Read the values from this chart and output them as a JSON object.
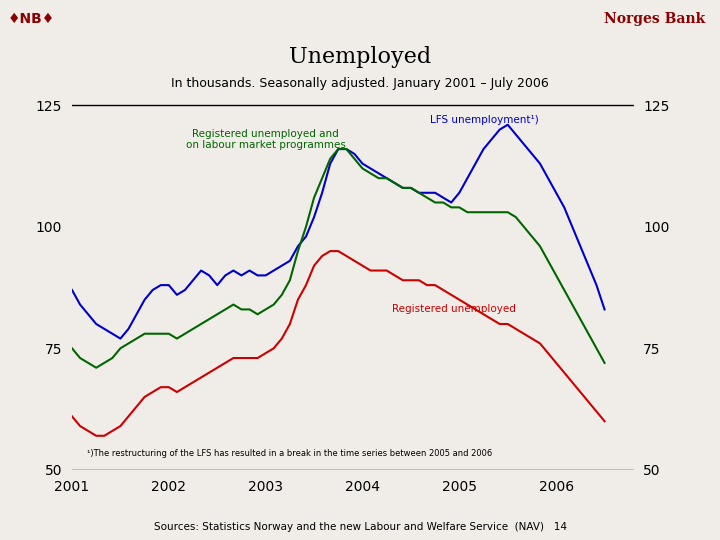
{
  "title": "Unemployed",
  "subtitle": "In thousands. Seasonally adjusted. January 2001 – July 2006",
  "footnote": "¹)The restructuring of the LFS has resulted in a break in the time series between 2005 and 2006",
  "source": "Sources: Statistics Norway and the new Labour and Welfare Service  (NAV)   14",
  "norges_bank_text": "Norges Bank",
  "nb_logo": "♦NB♦",
  "ylim": [
    50,
    130
  ],
  "yticks": [
    50,
    75,
    100,
    125
  ],
  "xlabel_years": [
    2001,
    2002,
    2003,
    2004,
    2005,
    2006
  ],
  "n_months": 67,
  "blue_color": "#0000CC",
  "green_color": "#006600",
  "red_color": "#CC0000",
  "bg_color": "#F0EDE8",
  "dark_red": "#8B0000",
  "lfs_label": "LFS unemployment¹)",
  "reg_and_prog_label": "Registered unemployed and\non labour market programmes",
  "reg_label": "Registered unemployed",
  "lfs": [
    87,
    84,
    82,
    80,
    79,
    78,
    77,
    79,
    82,
    85,
    87,
    88,
    88,
    86,
    87,
    89,
    91,
    90,
    88,
    90,
    91,
    90,
    91,
    90,
    90,
    91,
    92,
    93,
    96,
    98,
    102,
    107,
    113,
    116,
    116,
    115,
    113,
    112,
    111,
    110,
    109,
    108,
    108,
    107,
    107,
    107,
    106,
    105,
    107,
    110,
    113,
    116,
    118,
    120,
    121,
    119,
    117,
    115,
    113,
    110,
    107,
    104,
    100,
    96,
    92,
    88,
    83
  ],
  "reg_prog": [
    75,
    73,
    72,
    71,
    72,
    73,
    75,
    76,
    77,
    78,
    78,
    78,
    78,
    77,
    78,
    79,
    80,
    81,
    82,
    83,
    84,
    83,
    83,
    82,
    83,
    84,
    86,
    89,
    95,
    100,
    106,
    110,
    114,
    116,
    116,
    114,
    112,
    111,
    110,
    110,
    109,
    108,
    108,
    107,
    106,
    105,
    105,
    104,
    104,
    103,
    103,
    103,
    103,
    103,
    103,
    102,
    100,
    98,
    96,
    93,
    90,
    87,
    84,
    81,
    78,
    75,
    72
  ],
  "reg": [
    61,
    59,
    58,
    57,
    57,
    58,
    59,
    61,
    63,
    65,
    66,
    67,
    67,
    66,
    67,
    68,
    69,
    70,
    71,
    72,
    73,
    73,
    73,
    73,
    74,
    75,
    77,
    80,
    85,
    88,
    92,
    94,
    95,
    95,
    94,
    93,
    92,
    91,
    91,
    91,
    90,
    89,
    89,
    89,
    88,
    88,
    87,
    86,
    85,
    84,
    83,
    82,
    81,
    80,
    80,
    79,
    78,
    77,
    76,
    74,
    72,
    70,
    68,
    66,
    64,
    62,
    60
  ]
}
